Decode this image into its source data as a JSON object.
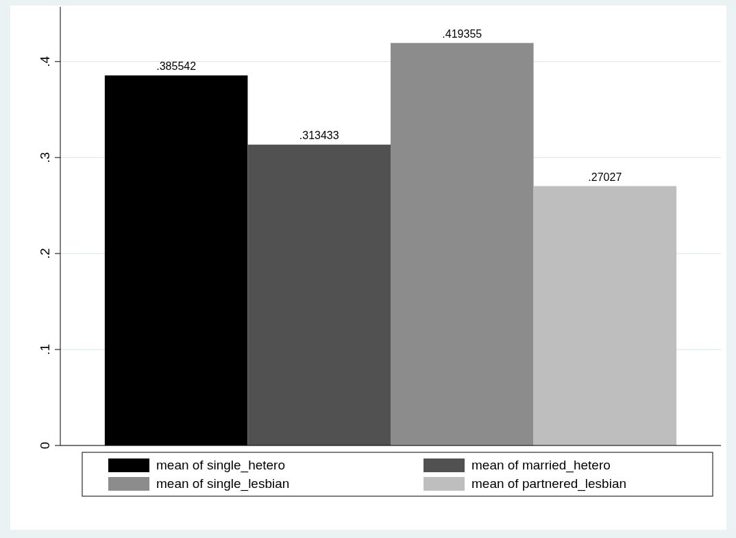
{
  "chart_data": {
    "type": "bar",
    "categories": [
      null
    ],
    "series": [
      {
        "name": "mean of single_hetero",
        "color": "#000000",
        "values": [
          0.385542
        ],
        "value_labels": [
          ".385542"
        ]
      },
      {
        "name": "mean of married_hetero",
        "color": "#515151",
        "values": [
          0.313433
        ],
        "value_labels": [
          ".313433"
        ]
      },
      {
        "name": "mean of single_lesbian",
        "color": "#8c8c8c",
        "values": [
          0.419355
        ],
        "value_labels": [
          ".419355"
        ]
      },
      {
        "name": "mean of partnered_lesbian",
        "color": "#bebebe",
        "values": [
          0.27027
        ],
        "value_labels": [
          ".27027"
        ]
      }
    ],
    "ylim": [
      0,
      0.457
    ],
    "yticks": [
      0,
      {
        "value": 0.1,
        "label": ".1"
      },
      {
        "value": 0.2,
        "label": ".2"
      },
      {
        "value": 0.3,
        "label": ".3"
      },
      {
        "value": 0.4,
        "label": ".4"
      }
    ],
    "grid": "y",
    "legend": "bottom"
  }
}
